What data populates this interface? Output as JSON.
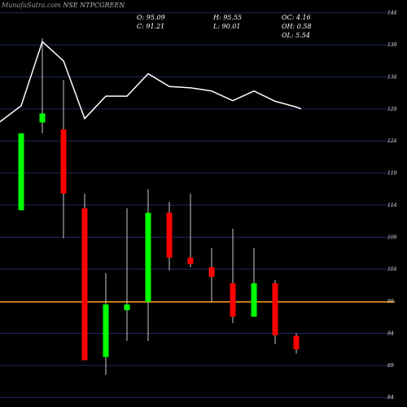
{
  "watermark": {
    "site": "MunafaSutra.com",
    "ticker": "NSE NTPCGREEN"
  },
  "ohlc_readout": {
    "open": "O: 95.09",
    "high": "H: 95.55",
    "oc": "OC: 4.16",
    "close": "C: 91.21",
    "low": "L: 90.01",
    "oh": "OH: 0.58",
    "ol": "OL: 5.54"
  },
  "colors": {
    "background": "#000000",
    "grid": "#1e2a5c",
    "up": "#00ff00",
    "down": "#ff0000",
    "wick": "#c8c8c8",
    "overlay_line": "#ffffff",
    "current_price_line": "#ff9900"
  },
  "chart_data": {
    "type": "candlestick",
    "ylim": [
      82.5,
      146.0
    ],
    "y_ticks": [
      84,
      89,
      94,
      99,
      104,
      109,
      114,
      119,
      124,
      129,
      134,
      139,
      144
    ],
    "y_tick_labels": [
      "84",
      "89",
      "94",
      "99",
      "104",
      "109",
      "114",
      "119",
      "124",
      "129",
      "134",
      "139",
      "144"
    ],
    "current_price": 98.9,
    "candles": [
      {
        "open": 113.2,
        "high": 125.2,
        "low": 113.2,
        "close": 125.2
      },
      {
        "open": 126.9,
        "high": 140.0,
        "low": 125.2,
        "close": 128.3
      },
      {
        "open": 125.8,
        "high": 133.5,
        "low": 108.8,
        "close": 115.8
      },
      {
        "open": 113.5,
        "high": 115.8,
        "low": 89.8,
        "close": 89.8
      },
      {
        "open": 90.3,
        "high": 103.4,
        "low": 87.5,
        "close": 98.5
      },
      {
        "open": 97.6,
        "high": 113.5,
        "low": 92.8,
        "close": 98.5
      },
      {
        "open": 98.9,
        "high": 116.5,
        "low": 92.8,
        "close": 112.8
      },
      {
        "open": 112.8,
        "high": 114.5,
        "low": 103.8,
        "close": 105.8
      },
      {
        "open": 105.8,
        "high": 115.8,
        "low": 104.3,
        "close": 104.8
      },
      {
        "open": 104.3,
        "high": 107.3,
        "low": 98.9,
        "close": 102.8
      },
      {
        "open": 101.8,
        "high": 110.3,
        "low": 95.6,
        "close": 96.6
      },
      {
        "open": 96.6,
        "high": 107.3,
        "low": 96.6,
        "close": 101.8
      },
      {
        "open": 101.8,
        "high": 102.3,
        "low": 92.3,
        "close": 93.7
      },
      {
        "open": 93.6,
        "high": 94.0,
        "low": 90.8,
        "close": 91.5
      }
    ],
    "overlay_line": [
      {
        "index": 0,
        "value": 129.5
      },
      {
        "index": 1,
        "value": 139.5
      },
      {
        "index": 2,
        "value": 136.5
      },
      {
        "index": 3,
        "value": 127.5
      },
      {
        "index": 4,
        "value": 131.0
      },
      {
        "index": 5,
        "value": 131.0
      },
      {
        "index": 6,
        "value": 134.5
      },
      {
        "index": 7,
        "value": 132.5
      },
      {
        "index": 8,
        "value": 132.3
      },
      {
        "index": 9,
        "value": 131.8
      },
      {
        "index": 10,
        "value": 130.3
      },
      {
        "index": 11,
        "value": 131.8
      },
      {
        "index": 12,
        "value": 130.2
      },
      {
        "index": 13,
        "value": 129.3
      }
    ]
  }
}
